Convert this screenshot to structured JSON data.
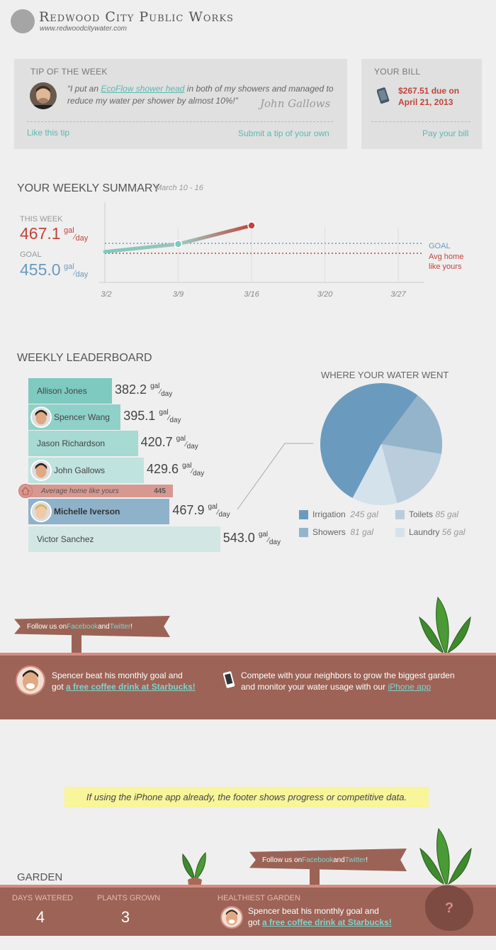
{
  "header": {
    "title": "Redwood City Public Works",
    "url": "www.redwoodcitywater.com"
  },
  "tip": {
    "label": "TIP OF THE WEEK",
    "quote_pre": "“I put an ",
    "quote_link": "EcoFlow shower head",
    "quote_post": " in both of my showers and managed to reduce my water per shower by almost 10%!”",
    "author": "John Gallows",
    "like": "Like this tip",
    "submit": "Submit a tip of your own"
  },
  "bill": {
    "label": "YOUR BILL",
    "amount_line1": "$267.51 due on",
    "amount_line2": "April 21, 2013",
    "pay": "Pay your bill"
  },
  "summary": {
    "title": "YOUR WEEKLY SUMMARY",
    "dates": "March 10 - 16",
    "this_week_label": "THIS WEEK",
    "this_week_value": "467.1",
    "goal_label": "GOAL",
    "goal_value": "455.0",
    "unit_top": "gal",
    "unit_bottom": "day",
    "legend_goal": "GOAL",
    "legend_avg_line1": "Avg home",
    "legend_avg_line2": "like yours",
    "colors": {
      "goal": "#6a9bbf",
      "this_week": "#c0453a",
      "avg": "#c0453a"
    }
  },
  "chart_data": [
    {
      "type": "line",
      "categories": [
        "3/2",
        "3/9",
        "3/16",
        "3/20",
        "3/27"
      ],
      "series": [
        {
          "values": [
            450,
            455,
            467.1,
            null,
            null
          ]
        }
      ],
      "reference_lines": [
        {
          "name": "GOAL",
          "value": 455.0
        },
        {
          "name": "Avg home like yours",
          "value": 445
        }
      ],
      "ylim": [
        430,
        480
      ],
      "grid": true
    },
    {
      "type": "bar",
      "title": "WEEKLY LEADERBOARD",
      "categories": [
        "Allison Jones",
        "Spencer Wang",
        "Jason Richardson",
        "John Gallows",
        "Average home like yours",
        "Michelle Iverson",
        "Victor Sanchez"
      ],
      "values": [
        382.2,
        395.1,
        420.7,
        429.6,
        445,
        467.9,
        543.0
      ]
    },
    {
      "type": "pie",
      "title": "WHERE YOUR WATER WENT",
      "categories": [
        "Irrigation",
        "Showers",
        "Toilets",
        "Laundry"
      ],
      "values": [
        245,
        81,
        85,
        56
      ],
      "unit": "gal",
      "colors": [
        "#6a9bbf",
        "#93b4cb",
        "#b9cddc",
        "#d4e2ec"
      ]
    }
  ],
  "leaderboard": {
    "title": "WEEKLY LEADERBOARD",
    "unit_top": "gal",
    "unit_bottom": "day",
    "rows": [
      {
        "name": "Allison Jones",
        "value": "382.2",
        "color": "#7ec9c0",
        "avatar": false
      },
      {
        "name": "Spencer Wang",
        "value": "395.1",
        "color": "#8fd1c8",
        "avatar": true
      },
      {
        "name": "Jason Richardson",
        "value": "420.7",
        "color": "#a6dad3",
        "avatar": false
      },
      {
        "name": "John Gallows",
        "value": "429.6",
        "color": "#bfe3df",
        "avatar": true
      },
      {
        "name": "Michelle Iverson",
        "value": "467.9",
        "color": "#8fb2cb",
        "avatar": true
      },
      {
        "name": "Victor Sanchez",
        "value": "543.0",
        "color": "#d2e6e4",
        "avatar": false
      }
    ],
    "average": {
      "name": "Average home like yours",
      "value": "445",
      "color": "#d79890"
    }
  },
  "pie": {
    "title": "WHERE YOUR WATER WENT",
    "legend": [
      {
        "name": "Irrigation",
        "value": "245 gal"
      },
      {
        "name": "Toilets",
        "value": "85 gal"
      },
      {
        "name": "Showers",
        "value": "81 gal"
      },
      {
        "name": "Laundry",
        "value": "56 gal"
      }
    ]
  },
  "footer1": {
    "sign_pre": "Follow us on ",
    "sign_facebook": "Facebook",
    "sign_and": " and ",
    "sign_twitter": "Twitter",
    "sign_post": "!",
    "promo_line1": "Spencer beat his monthly goal and",
    "promo_pre": "got ",
    "promo_link": "a free coffee drink at Starbucks!",
    "app_line1": "Compete with your neighbors to grow the biggest garden",
    "app_pre": "and monitor your water usage with our ",
    "app_link": "iPhone app"
  },
  "note": "If using the iPhone app already, the footer shows progress or competitive data.",
  "garden": {
    "title": "GARDEN",
    "days_label": "DAYS WATERED",
    "days_value": "4",
    "plants_label": "PLANTS GROWN",
    "plants_value": "3",
    "healthiest_label": "HEALTHIEST GARDEN",
    "promo_line1": "Spencer beat his monthly goal and",
    "promo_pre": "got ",
    "promo_link": "a free coffee drink at Starbucks!",
    "mystery": "?",
    "sign_pre": "Follow us on ",
    "sign_facebook": "Facebook",
    "sign_and": " and ",
    "sign_twitter": "Twitter",
    "sign_post": "!"
  }
}
